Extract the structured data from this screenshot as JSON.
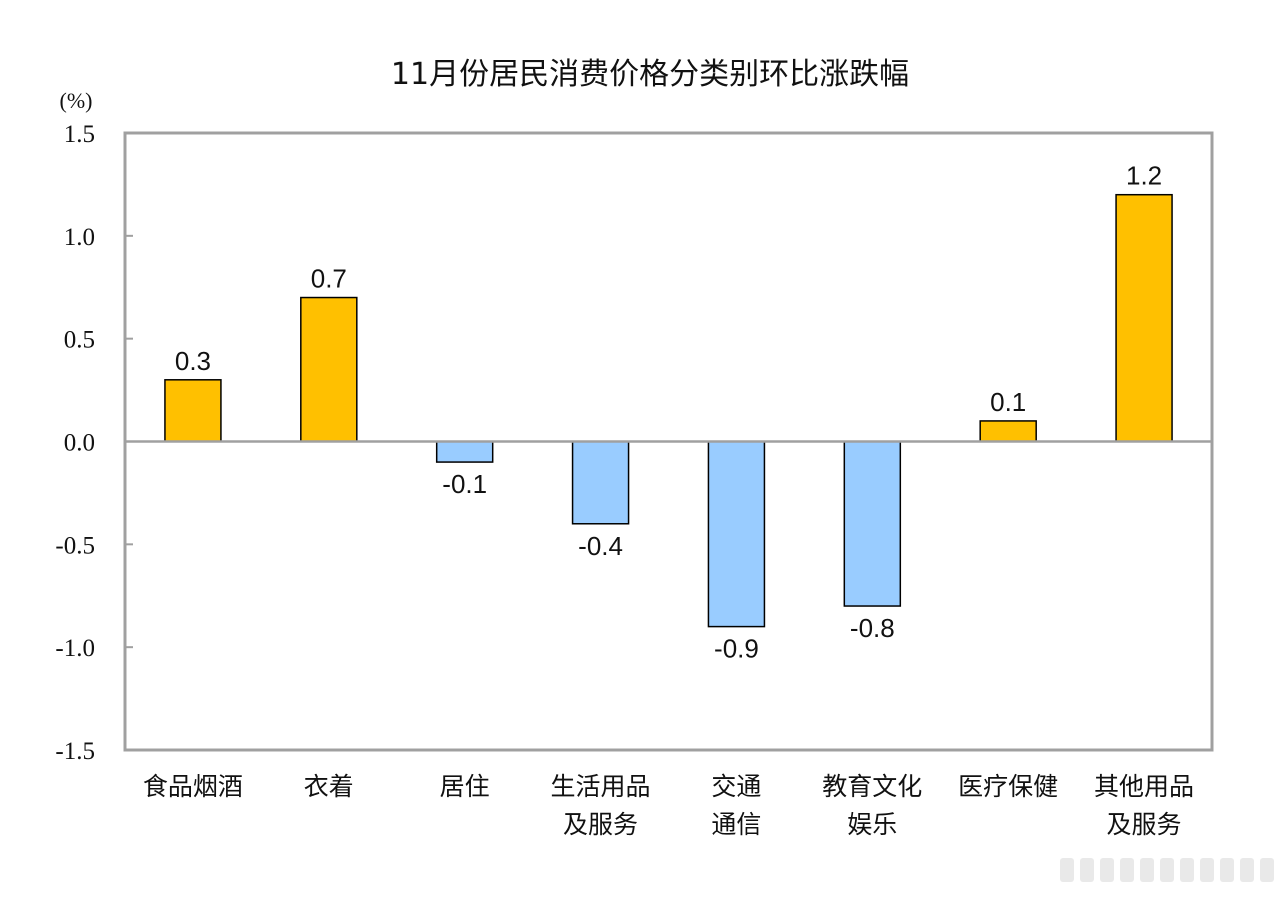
{
  "chart_data": {
    "type": "bar",
    "title": "11月份居民消费价格分类别环比涨跌幅",
    "unit_label": "(%)",
    "ylim": [
      -1.5,
      1.5
    ],
    "yticks": [
      1.5,
      1.0,
      0.5,
      0.0,
      -0.5,
      -1.0,
      -1.5
    ],
    "ytick_labels": [
      "1.5",
      "1.0",
      "0.5",
      "0.0",
      "-0.5",
      "-1.0",
      "-1.5"
    ],
    "categories": [
      [
        "食品烟酒"
      ],
      [
        "衣着"
      ],
      [
        "居住"
      ],
      [
        "生活用品",
        "及服务"
      ],
      [
        "交通",
        "通信"
      ],
      [
        "教育文化",
        "娱乐"
      ],
      [
        "医疗保健"
      ],
      [
        "其他用品",
        "及服务"
      ]
    ],
    "values": [
      0.3,
      0.7,
      -0.1,
      -0.4,
      -0.9,
      -0.8,
      0.1,
      1.2
    ],
    "value_labels": [
      "0.3",
      "0.7",
      "-0.1",
      "-0.4",
      "-0.9",
      "-0.8",
      "0.1",
      "1.2"
    ],
    "colors": {
      "positive": "#FFC000",
      "negative": "#99CCFF",
      "bar_stroke": "#000000",
      "frame": "#A0A0A0",
      "zero_line": "#A0A0A0"
    },
    "legend": "none",
    "grid": false
  }
}
